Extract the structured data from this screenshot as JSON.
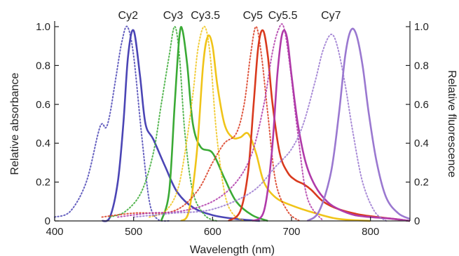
{
  "chart_data": {
    "type": "line",
    "xlabel": "Wavelength (nm)",
    "ylabel_left": "Relative absorbance",
    "ylabel_right": "Relative fluorescence",
    "xlim": [
      400,
      850
    ],
    "ylim": [
      0,
      1.0
    ],
    "x_ticks": [
      400,
      500,
      600,
      700,
      800
    ],
    "y_ticks": [
      0,
      0.2,
      0.4,
      0.6,
      0.8,
      1.0
    ],
    "y_tick_labels": [
      "0",
      "0.2",
      "0.4",
      "0.6",
      "0.8",
      "1.0"
    ],
    "grid": false,
    "legend": "dye names printed above peaks",
    "series": [
      {
        "name": "Cy2",
        "color": "#4b45b5",
        "label_x": 493,
        "absorption": {
          "x": [
            400,
            420,
            440,
            455,
            460,
            465,
            470,
            478,
            485,
            492,
            500,
            510,
            520,
            530,
            545
          ],
          "y": [
            0.02,
            0.05,
            0.2,
            0.45,
            0.5,
            0.48,
            0.55,
            0.75,
            0.92,
            1.0,
            0.85,
            0.45,
            0.1,
            0.01,
            0.0
          ]
        },
        "emission": {
          "x": [
            460,
            470,
            480,
            487,
            493,
            500,
            508,
            515,
            525,
            540,
            555,
            575,
            600,
            630,
            660
          ],
          "y": [
            0.0,
            0.02,
            0.2,
            0.5,
            0.85,
            0.98,
            0.75,
            0.5,
            0.42,
            0.28,
            0.15,
            0.07,
            0.03,
            0.01,
            0.0
          ]
        }
      },
      {
        "name": "Cy3",
        "color": "#3aaa35",
        "label_x": 550,
        "absorption": {
          "x": [
            470,
            490,
            510,
            525,
            535,
            545,
            552,
            558,
            565,
            575,
            590,
            605
          ],
          "y": [
            0.02,
            0.05,
            0.15,
            0.35,
            0.6,
            0.85,
            1.0,
            0.85,
            0.45,
            0.15,
            0.03,
            0.0
          ]
        },
        "emission": {
          "x": [
            535,
            545,
            552,
            558,
            562,
            568,
            575,
            585,
            600,
            615,
            630,
            650,
            670
          ],
          "y": [
            0.0,
            0.15,
            0.6,
            0.95,
            0.98,
            0.8,
            0.5,
            0.38,
            0.35,
            0.22,
            0.1,
            0.03,
            0.0
          ]
        }
      },
      {
        "name": "Cy3.5",
        "color": "#f0c419",
        "label_x": 591,
        "absorption": {
          "x": [
            520,
            540,
            555,
            565,
            575,
            582,
            590,
            597,
            605,
            615,
            625,
            640
          ],
          "y": [
            0.02,
            0.05,
            0.15,
            0.35,
            0.65,
            0.9,
            1.0,
            0.85,
            0.45,
            0.15,
            0.04,
            0.0
          ]
        },
        "emission": {
          "x": [
            560,
            570,
            580,
            588,
            594,
            600,
            606,
            615,
            625,
            635,
            645,
            655,
            665,
            680,
            700,
            730,
            760,
            800
          ],
          "y": [
            0.0,
            0.05,
            0.35,
            0.8,
            0.95,
            0.9,
            0.7,
            0.5,
            0.43,
            0.43,
            0.45,
            0.35,
            0.2,
            0.12,
            0.08,
            0.04,
            0.01,
            0.0
          ]
        }
      },
      {
        "name": "Cy5",
        "color": "#d93a1e",
        "label_x": 651,
        "absorption": {
          "x": [
            460,
            500,
            550,
            580,
            600,
            615,
            630,
            640,
            648,
            655,
            662,
            670,
            680,
            695,
            710
          ],
          "y": [
            0.02,
            0.04,
            0.05,
            0.15,
            0.3,
            0.4,
            0.45,
            0.6,
            0.85,
            1.0,
            0.85,
            0.55,
            0.2,
            0.05,
            0.0
          ]
        },
        "emission": {
          "x": [
            620,
            635,
            645,
            652,
            658,
            664,
            670,
            676,
            685,
            695,
            705,
            715,
            725,
            740,
            760,
            790,
            830,
            850
          ],
          "y": [
            0.0,
            0.05,
            0.25,
            0.6,
            0.9,
            0.98,
            0.85,
            0.6,
            0.35,
            0.25,
            0.21,
            0.19,
            0.16,
            0.1,
            0.06,
            0.03,
            0.01,
            0.0
          ]
        }
      },
      {
        "name": "Cy5.5",
        "color": "#b03aa9",
        "label_x": 689,
        "absorption": {
          "x": [
            480,
            520,
            560,
            600,
            630,
            650,
            665,
            675,
            683,
            690,
            698,
            708,
            720,
            740
          ],
          "y": [
            0.02,
            0.04,
            0.05,
            0.1,
            0.2,
            0.35,
            0.6,
            0.85,
            0.98,
            1.0,
            0.8,
            0.45,
            0.12,
            0.0
          ]
        },
        "emission": {
          "x": [
            650,
            665,
            675,
            682,
            688,
            694,
            700,
            708,
            718,
            730,
            745,
            760,
            780,
            800,
            830,
            850
          ],
          "y": [
            0.0,
            0.05,
            0.35,
            0.75,
            0.96,
            0.95,
            0.75,
            0.5,
            0.3,
            0.18,
            0.1,
            0.06,
            0.03,
            0.02,
            0.01,
            0.0
          ]
        }
      },
      {
        "name": "Cy7",
        "color": "#9a78d0",
        "label_x": 750,
        "absorption": {
          "x": [
            500,
            550,
            600,
            650,
            680,
            700,
            715,
            730,
            740,
            750,
            758,
            768,
            778,
            790,
            805,
            820
          ],
          "y": [
            0.02,
            0.04,
            0.06,
            0.15,
            0.28,
            0.37,
            0.5,
            0.72,
            0.88,
            0.96,
            0.9,
            0.7,
            0.45,
            0.2,
            0.05,
            0.0
          ]
        },
        "emission": {
          "x": [
            720,
            735,
            750,
            760,
            768,
            775,
            782,
            790,
            798,
            808,
            820,
            835,
            850
          ],
          "y": [
            0.0,
            0.05,
            0.25,
            0.55,
            0.85,
            0.98,
            0.96,
            0.8,
            0.55,
            0.3,
            0.12,
            0.04,
            0.01
          ]
        }
      }
    ]
  }
}
